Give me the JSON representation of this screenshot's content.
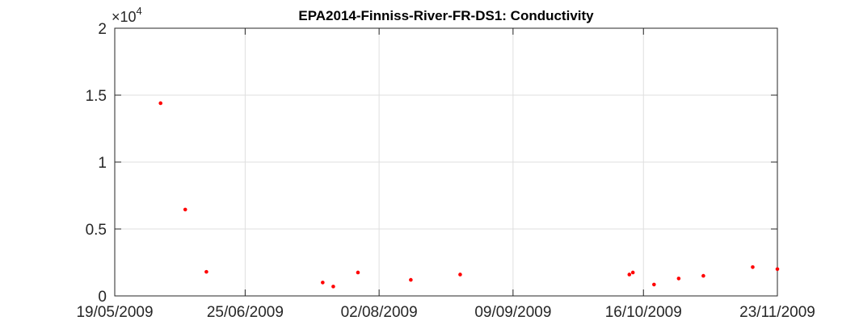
{
  "chart_data": {
    "type": "scatter",
    "title": "EPA2014-Finniss-River-FR-DS1: Conductivity",
    "xlabel": "",
    "ylabel": "",
    "y_multiplier_label": {
      "base": "×10",
      "exponent": "4"
    },
    "xlim": [
      "2009-05-19",
      "2009-11-23"
    ],
    "ylim": [
      0,
      20000
    ],
    "x_ticks": [
      "19/05/2009",
      "25/06/2009",
      "02/08/2009",
      "09/09/2009",
      "16/10/2009",
      "23/11/2009"
    ],
    "x_tick_dates": [
      "2009-05-19",
      "2009-06-25",
      "2009-08-02",
      "2009-09-09",
      "2009-10-16",
      "2009-11-23"
    ],
    "y_ticks": [
      "0",
      "0.5",
      "1",
      "1.5",
      "2"
    ],
    "y_tick_values": [
      0,
      5000,
      10000,
      15000,
      20000
    ],
    "grid": true,
    "series": [
      {
        "color": "#ff0000",
        "points": [
          {
            "x": "2009-06-01",
            "y": 14400
          },
          {
            "x": "2009-06-08",
            "y": 6450
          },
          {
            "x": "2009-06-14",
            "y": 1800
          },
          {
            "x": "2009-07-17",
            "y": 1000
          },
          {
            "x": "2009-07-20",
            "y": 700
          },
          {
            "x": "2009-07-27",
            "y": 1750
          },
          {
            "x": "2009-08-11",
            "y": 1200
          },
          {
            "x": "2009-08-25",
            "y": 1600
          },
          {
            "x": "2009-10-12",
            "y": 1600
          },
          {
            "x": "2009-10-13",
            "y": 1750
          },
          {
            "x": "2009-10-19",
            "y": 850
          },
          {
            "x": "2009-10-26",
            "y": 1300
          },
          {
            "x": "2009-11-02",
            "y": 1500
          },
          {
            "x": "2009-11-16",
            "y": 2150
          },
          {
            "x": "2009-11-23",
            "y": 2000
          }
        ]
      }
    ]
  }
}
